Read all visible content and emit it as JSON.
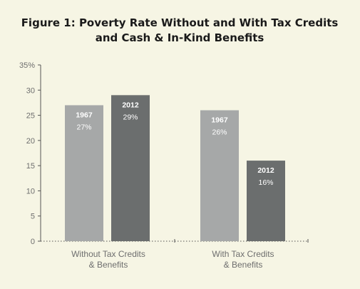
{
  "chart_data": {
    "type": "bar",
    "title_lines": [
      "Figure 1: Poverty Rate Without and With Tax Credits",
      "and Cash & In-Kind Benefits"
    ],
    "categories": [
      [
        "Without Tax Credits",
        "& Benefits"
      ],
      [
        "With Tax Credits",
        "& Benefits"
      ]
    ],
    "series": [
      {
        "name": "1967",
        "values": [
          27,
          26
        ],
        "labels": [
          "27%",
          "26%"
        ],
        "color": "#a6a8a8"
      },
      {
        "name": "2012",
        "values": [
          29,
          16
        ],
        "labels": [
          "29%",
          "16%"
        ],
        "color": "#6b6e6e"
      }
    ],
    "yticks": [
      "0",
      "5",
      "10",
      "15",
      "20",
      "25",
      "30",
      "35%"
    ],
    "ylim": [
      0,
      35
    ],
    "grid": false,
    "legend": "none"
  }
}
